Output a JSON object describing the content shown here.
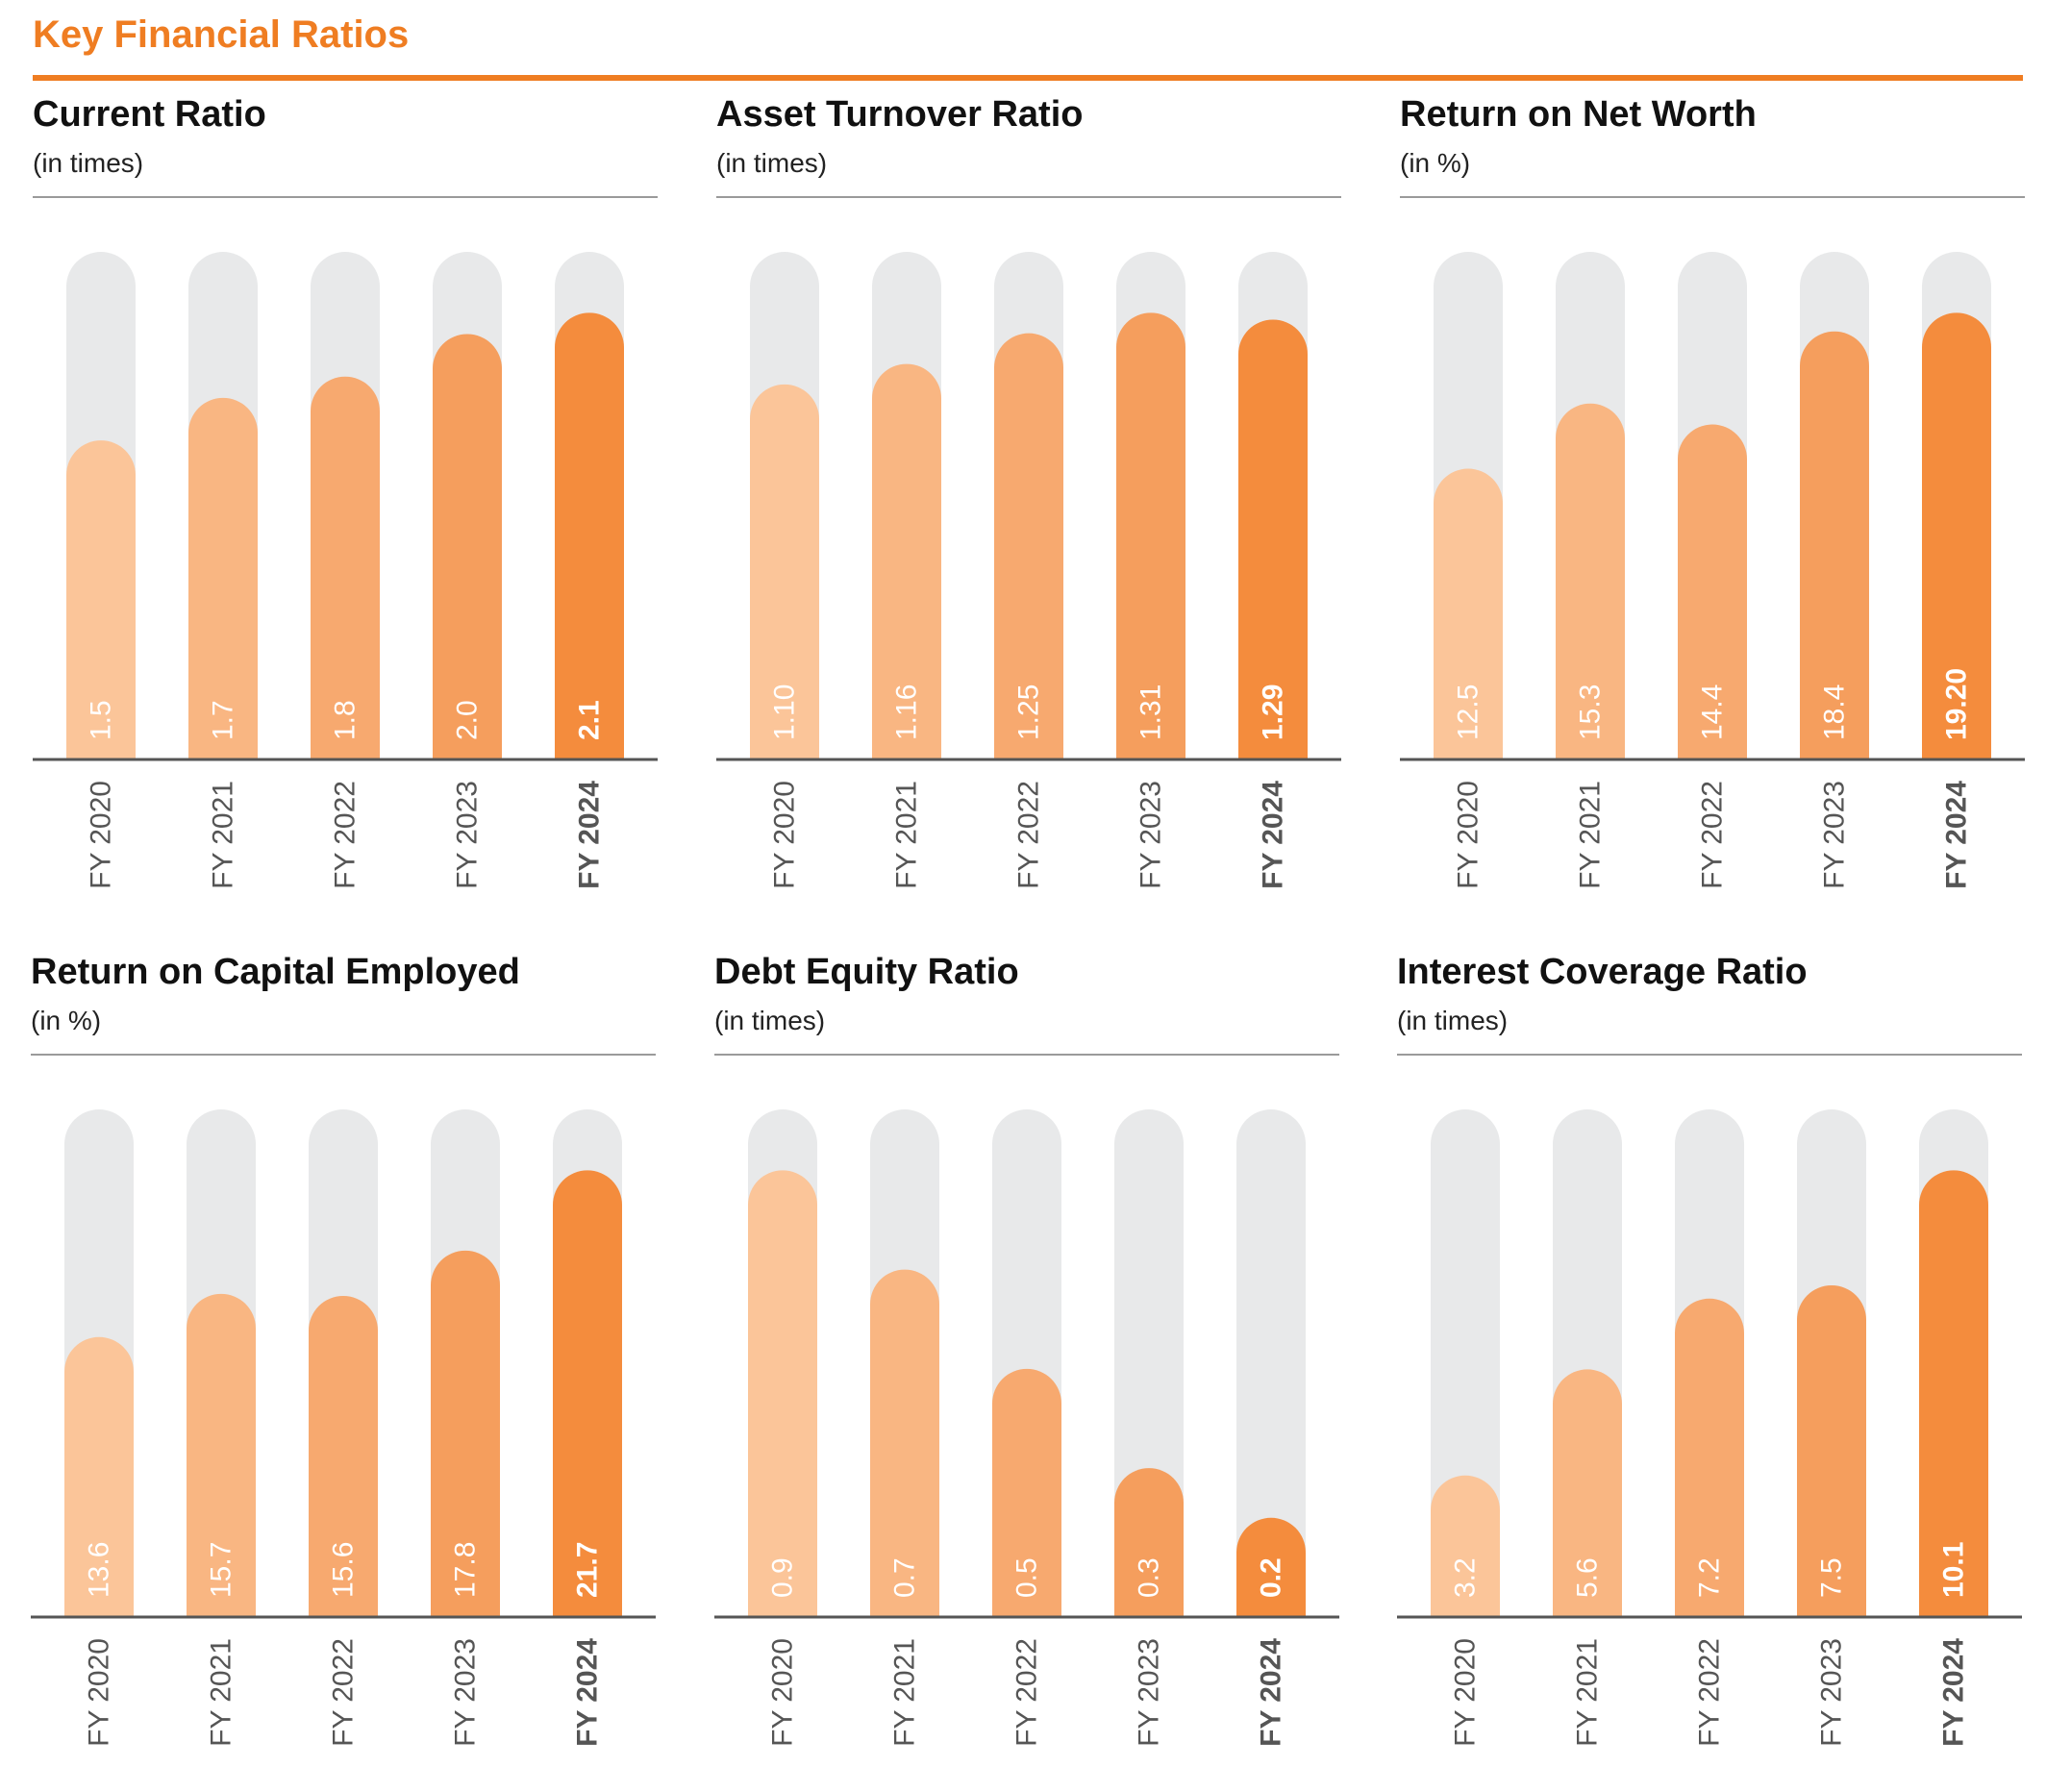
{
  "page_title": "Key Financial Ratios",
  "colors": {
    "accent": "#EF7D22",
    "track": "#E8E9EA",
    "bar_shades": [
      "#FBC599",
      "#F9B682",
      "#F7A96F",
      "#F59E5D",
      "#F48C3D"
    ],
    "axis_line": "#555555",
    "axis_label": "#555555",
    "value_label_regular": "#FFFFFF",
    "value_label_highlight": "#FFFFFF"
  },
  "chart_data": [
    {
      "type": "bar",
      "title": "Current Ratio",
      "unit": "(in times)",
      "categories": [
        "FY 2020",
        "FY 2021",
        "FY 2022",
        "FY 2023",
        "FY 2024"
      ],
      "values": [
        1.5,
        1.7,
        1.8,
        2.0,
        2.1
      ],
      "value_labels": [
        "1.5",
        "1.7",
        "1.8",
        "2.0",
        "2.1"
      ],
      "highlight_index": 4,
      "grid": false,
      "legend": "none"
    },
    {
      "type": "bar",
      "title": "Asset Turnover Ratio",
      "unit": "(in times)",
      "categories": [
        "FY 2020",
        "FY 2021",
        "FY 2022",
        "FY 2023",
        "FY 2024"
      ],
      "values": [
        1.1,
        1.16,
        1.25,
        1.31,
        1.29
      ],
      "value_labels": [
        "1.10",
        "1.16",
        "1.25",
        "1.31",
        "1.29"
      ],
      "highlight_index": 4,
      "grid": false,
      "legend": "none"
    },
    {
      "type": "bar",
      "title": "Return on Net Worth",
      "unit": "(in %)",
      "categories": [
        "FY 2020",
        "FY 2021",
        "FY 2022",
        "FY 2023",
        "FY 2024"
      ],
      "values": [
        12.5,
        15.3,
        14.4,
        18.4,
        19.2
      ],
      "value_labels": [
        "12.5",
        "15.3",
        "14.4",
        "18.4",
        "19.20"
      ],
      "highlight_index": 4,
      "grid": false,
      "legend": "none"
    },
    {
      "type": "bar",
      "title": "Return on Capital Employed",
      "unit": "(in %)",
      "categories": [
        "FY 2020",
        "FY 2021",
        "FY 2022",
        "FY 2023",
        "FY 2024"
      ],
      "values": [
        13.6,
        15.7,
        15.6,
        17.8,
        21.7
      ],
      "value_labels": [
        "13.6",
        "15.7",
        "15.6",
        "17.8",
        "21.7"
      ],
      "highlight_index": 4,
      "grid": false,
      "legend": "none"
    },
    {
      "type": "bar",
      "title": "Debt Equity Ratio",
      "unit": "(in times)",
      "categories": [
        "FY 2020",
        "FY 2021",
        "FY 2022",
        "FY 2023",
        "FY 2024"
      ],
      "values": [
        0.9,
        0.7,
        0.5,
        0.3,
        0.2
      ],
      "value_labels": [
        "0.9",
        "0.7",
        "0.5",
        "0.3",
        "0.2"
      ],
      "highlight_index": 4,
      "grid": false,
      "legend": "none"
    },
    {
      "type": "bar",
      "title": "Interest Coverage Ratio",
      "unit": "(in times)",
      "categories": [
        "FY 2020",
        "FY 2021",
        "FY 2022",
        "FY 2023",
        "FY 2024"
      ],
      "values": [
        3.2,
        5.6,
        7.2,
        7.5,
        10.1
      ],
      "value_labels": [
        "3.2",
        "5.6",
        "7.2",
        "7.5",
        "10.1"
      ],
      "highlight_index": 4,
      "grid": false,
      "legend": "none"
    }
  ]
}
